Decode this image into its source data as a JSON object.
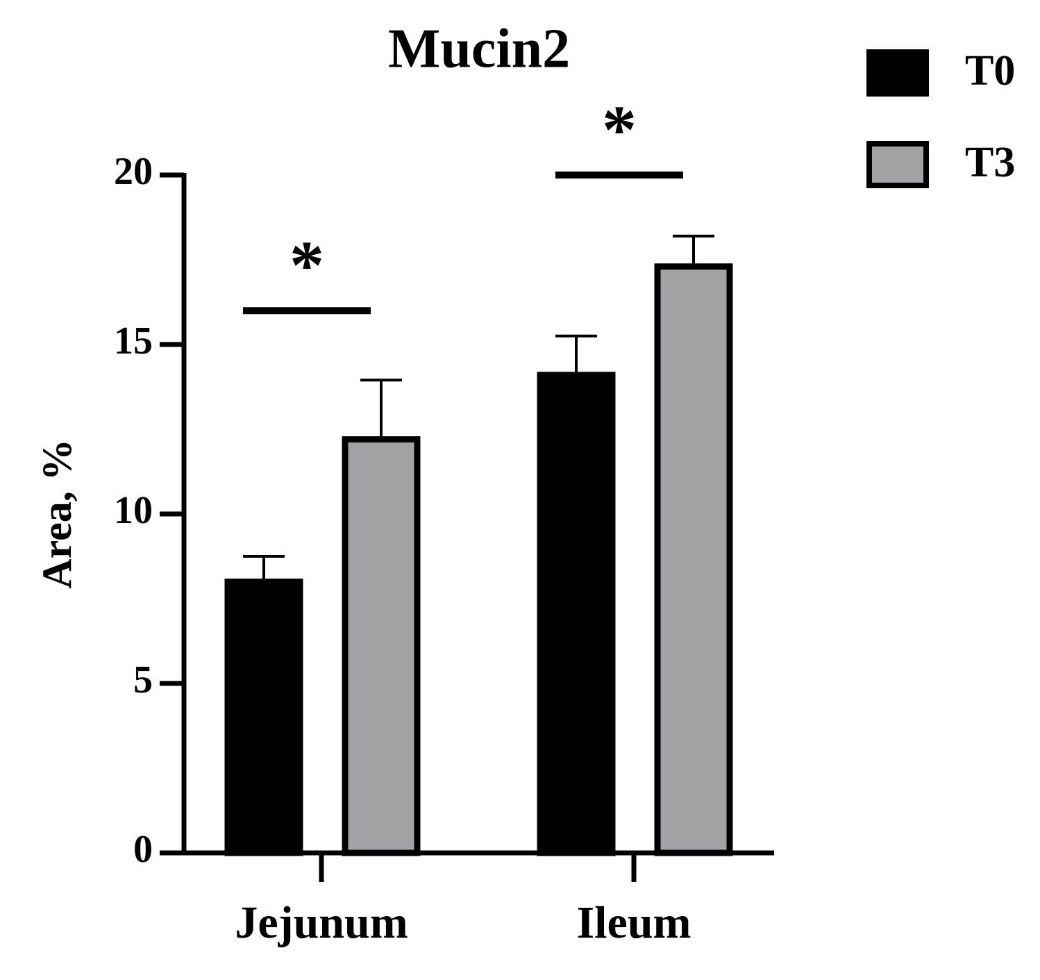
{
  "chart_data": {
    "type": "bar",
    "title": "Mucin2",
    "y_label": "Area, %",
    "categories": [
      "Jejunum",
      "Ileum"
    ],
    "series": [
      {
        "name": "T0",
        "color": "#000000",
        "values": [
          8.0,
          14.1
        ],
        "errors": [
          0.75,
          1.15
        ]
      },
      {
        "name": "T3",
        "color": "#a3a2a6",
        "values": [
          12.2,
          17.3
        ],
        "errors": [
          1.75,
          0.9
        ]
      }
    ],
    "ylim": [
      0,
      20
    ],
    "yticks": [
      0,
      5,
      10,
      15,
      20
    ],
    "annotations": [
      {
        "text": "*",
        "category": "Jejunum",
        "y": 16
      },
      {
        "text": "*",
        "category": "Ileum",
        "y": 20
      }
    ],
    "legend": "top-right"
  }
}
